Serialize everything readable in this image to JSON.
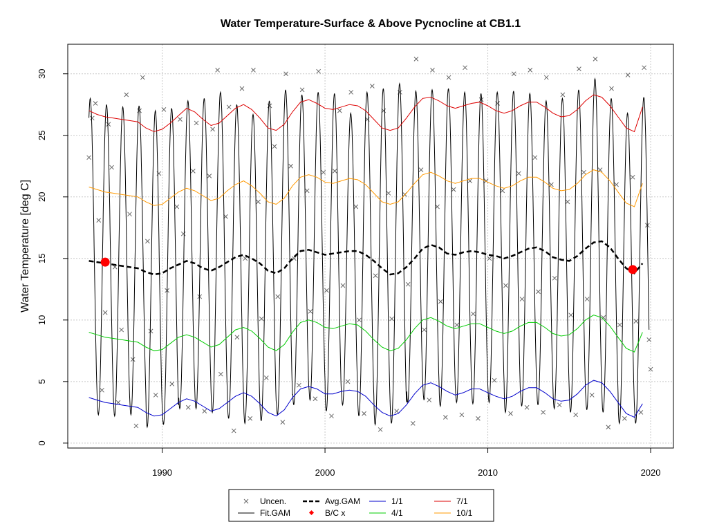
{
  "chart_data": {
    "type": "line",
    "title": "Water Temperature-Surface & Above Pycnocline at CB1.1",
    "xlabel": "",
    "ylabel": "Water Temperature [deg C]",
    "xlim": [
      1984.2,
      2021.4
    ],
    "ylim": [
      -0.4,
      32.4
    ],
    "x_ticks": [
      1990,
      2000,
      2010,
      2020
    ],
    "y_ticks": [
      0,
      5,
      10,
      15,
      20,
      25,
      30
    ],
    "grid": true,
    "legend_position": "bottom",
    "legend": [
      {
        "label": "Uncen.",
        "kind": "x-marker",
        "color": "#666666"
      },
      {
        "label": "Fit.GAM",
        "kind": "line",
        "color": "#000000"
      },
      {
        "label": "Avg.GAM",
        "kind": "dashed-line",
        "color": "#000000"
      },
      {
        "label": "B/C x",
        "kind": "dot",
        "color": "#ff0000"
      },
      {
        "label": "1/1",
        "kind": "line",
        "color": "#0000cc"
      },
      {
        "label": "4/1",
        "kind": "line",
        "color": "#00cc00"
      },
      {
        "label": "7/1",
        "kind": "line",
        "color": "#dd0000"
      },
      {
        "label": "10/1",
        "kind": "line",
        "color": "#ff9900"
      }
    ],
    "bc_points": [
      {
        "x": 1986.5,
        "y": 14.7
      },
      {
        "x": 2018.9,
        "y": 14.1
      }
    ],
    "avg_gam": {
      "name": "Avg.GAM",
      "x": [
        1985.5,
        1986.0,
        1986.5,
        1987.0,
        1987.5,
        1988.0,
        1988.5,
        1989.0,
        1989.5,
        1990.0,
        1990.5,
        1991.0,
        1991.5,
        1992.0,
        1992.5,
        1993.0,
        1993.5,
        1994.0,
        1994.5,
        1995.0,
        1995.5,
        1996.0,
        1996.5,
        1997.0,
        1997.5,
        1998.0,
        1998.5,
        1999.0,
        1999.5,
        2000.0,
        2000.5,
        2001.0,
        2001.5,
        2002.0,
        2002.5,
        2003.0,
        2003.5,
        2004.0,
        2004.5,
        2005.0,
        2005.5,
        2006.0,
        2006.5,
        2007.0,
        2007.5,
        2008.0,
        2008.5,
        2009.0,
        2009.5,
        2010.0,
        2010.5,
        2011.0,
        2011.5,
        2012.0,
        2012.5,
        2013.0,
        2013.5,
        2014.0,
        2014.5,
        2015.0,
        2015.5,
        2016.0,
        2016.5,
        2017.0,
        2017.5,
        2018.0,
        2018.5,
        2019.0,
        2019.5
      ],
      "y": [
        14.8,
        14.7,
        14.6,
        14.5,
        14.4,
        14.3,
        14.2,
        13.9,
        13.7,
        13.8,
        14.2,
        14.5,
        14.8,
        14.6,
        14.2,
        14.0,
        14.3,
        14.7,
        15.1,
        15.3,
        15.0,
        14.6,
        14.0,
        13.8,
        14.2,
        15.0,
        15.6,
        15.7,
        15.5,
        15.3,
        15.4,
        15.5,
        15.6,
        15.6,
        15.3,
        14.8,
        14.2,
        13.7,
        13.8,
        14.3,
        15.0,
        15.8,
        16.1,
        15.9,
        15.4,
        15.3,
        15.5,
        15.6,
        15.5,
        15.3,
        15.2,
        15.0,
        15.2,
        15.5,
        15.8,
        15.9,
        15.6,
        15.1,
        14.9,
        14.8,
        15.2,
        15.8,
        16.3,
        16.4,
        15.9,
        15.0,
        14.2,
        13.8,
        14.6
      ]
    },
    "series": [
      {
        "name": "1/1",
        "color": "#0000cc",
        "y": [
          3.7,
          3.5,
          3.3,
          3.2,
          3.1,
          3.0,
          2.9,
          2.5,
          2.2,
          2.3,
          2.8,
          3.3,
          3.6,
          3.4,
          3.0,
          2.6,
          2.8,
          3.3,
          3.8,
          4.1,
          3.8,
          3.2,
          2.5,
          2.2,
          2.7,
          3.7,
          4.4,
          4.6,
          4.4,
          4.0,
          4.0,
          4.2,
          4.3,
          4.2,
          3.8,
          3.1,
          2.5,
          2.2,
          2.4,
          3.1,
          4.0,
          4.7,
          4.9,
          4.6,
          4.2,
          3.9,
          4.1,
          4.4,
          4.4,
          4.1,
          3.8,
          3.6,
          3.8,
          4.2,
          4.5,
          4.5,
          4.1,
          3.6,
          3.4,
          3.5,
          4.0,
          4.7,
          5.1,
          4.9,
          4.2,
          3.3,
          2.4,
          2.1,
          3.2
        ]
      },
      {
        "name": "4/1",
        "color": "#00cc00",
        "y": [
          9.0,
          8.8,
          8.6,
          8.5,
          8.4,
          8.3,
          8.2,
          7.8,
          7.5,
          7.6,
          8.1,
          8.6,
          8.8,
          8.6,
          8.2,
          7.8,
          8.0,
          8.6,
          9.2,
          9.4,
          9.1,
          8.5,
          7.8,
          7.5,
          8.0,
          9.0,
          9.8,
          10.0,
          9.8,
          9.4,
          9.3,
          9.5,
          9.7,
          9.6,
          9.1,
          8.4,
          7.8,
          7.5,
          7.7,
          8.4,
          9.3,
          10.0,
          10.2,
          9.9,
          9.5,
          9.3,
          9.5,
          9.7,
          9.7,
          9.4,
          9.1,
          8.9,
          9.1,
          9.5,
          9.8,
          9.8,
          9.4,
          8.9,
          8.7,
          8.8,
          9.3,
          10.0,
          10.4,
          10.2,
          9.5,
          8.6,
          7.7,
          7.4,
          9.0
        ]
      },
      {
        "name": "7/1",
        "color": "#dd0000",
        "y": [
          27.0,
          26.7,
          26.5,
          26.4,
          26.3,
          26.2,
          26.1,
          25.6,
          25.3,
          25.5,
          26.0,
          26.6,
          27.2,
          26.9,
          26.3,
          25.8,
          26.0,
          26.6,
          27.2,
          27.5,
          27.1,
          26.4,
          25.6,
          25.4,
          25.9,
          26.9,
          27.7,
          27.9,
          27.6,
          27.2,
          27.1,
          27.3,
          27.5,
          27.4,
          27.0,
          26.3,
          25.6,
          25.4,
          25.6,
          26.4,
          27.3,
          28.0,
          28.1,
          27.8,
          27.4,
          27.2,
          27.4,
          27.6,
          27.7,
          27.4,
          27.0,
          26.8,
          27.0,
          27.4,
          27.7,
          27.7,
          27.3,
          26.8,
          26.5,
          26.6,
          27.1,
          27.8,
          28.3,
          28.1,
          27.4,
          26.5,
          25.6,
          25.3,
          27.3
        ]
      },
      {
        "name": "10/1",
        "color": "#ff9900",
        "y": [
          20.8,
          20.6,
          20.4,
          20.3,
          20.2,
          20.1,
          20.0,
          19.6,
          19.3,
          19.4,
          19.9,
          20.4,
          20.7,
          20.5,
          20.1,
          19.7,
          19.9,
          20.5,
          21.0,
          21.3,
          20.9,
          20.3,
          19.6,
          19.4,
          19.9,
          20.9,
          21.6,
          21.8,
          21.6,
          21.2,
          21.1,
          21.3,
          21.5,
          21.4,
          21.0,
          20.3,
          19.6,
          19.4,
          19.6,
          20.3,
          21.1,
          21.8,
          22.0,
          21.7,
          21.3,
          21.1,
          21.3,
          21.5,
          21.5,
          21.2,
          20.9,
          20.7,
          20.9,
          21.3,
          21.6,
          21.6,
          21.2,
          20.7,
          20.5,
          20.6,
          21.1,
          21.8,
          22.2,
          22.0,
          21.3,
          20.4,
          19.5,
          19.2,
          21.1
        ]
      }
    ],
    "fit_gam": {
      "name": "Fit.GAM",
      "x_start": 1985.5,
      "x_end": 2019.9,
      "peak_phase": 0.58,
      "peaks": [
        28.0,
        27.5,
        27.3,
        27.4,
        27.0,
        27.2,
        27.8,
        28.0,
        28.5,
        27.5,
        26.7,
        27.8,
        28.7,
        28.3,
        28.5,
        28.4,
        26.8,
        28.5,
        28.8,
        29.2,
        28.6,
        28.7,
        28.8,
        28.5,
        28.4,
        28.5,
        28.6,
        28.4,
        27.8,
        28.0,
        28.7,
        29.6,
        28.0,
        26.8,
        28.1
      ],
      "troughs": [
        2.4,
        2.3,
        2.2,
        2.3,
        1.3,
        1.5,
        2.8,
        2.8,
        2.5,
        2.0,
        1.6,
        1.8,
        2.3,
        3.1,
        3.5,
        2.6,
        3.1,
        2.2,
        1.5,
        1.6,
        3.3,
        3.5,
        3.0,
        3.3,
        3.2,
        3.3,
        2.5,
        3.0,
        3.1,
        2.8,
        2.5,
        2.7,
        2.5,
        1.6,
        1.6
      ]
    },
    "uncen_points": [
      [
        1985.5,
        23.2
      ],
      [
        1985.7,
        26.4
      ],
      [
        1985.9,
        27.6
      ],
      [
        1986.1,
        18.1
      ],
      [
        1986.3,
        4.3
      ],
      [
        1986.5,
        10.6
      ],
      [
        1986.7,
        25.9
      ],
      [
        1986.9,
        22.4
      ],
      [
        1987.1,
        14.3
      ],
      [
        1987.3,
        3.3
      ],
      [
        1987.5,
        9.2
      ],
      [
        1987.8,
        28.3
      ],
      [
        1988.0,
        18.6
      ],
      [
        1988.2,
        6.8
      ],
      [
        1988.4,
        1.4
      ],
      [
        1988.6,
        27.0
      ],
      [
        1988.8,
        29.7
      ],
      [
        1989.1,
        16.4
      ],
      [
        1989.3,
        9.1
      ],
      [
        1989.6,
        3.9
      ],
      [
        1989.8,
        21.9
      ],
      [
        1990.1,
        27.1
      ],
      [
        1990.3,
        12.4
      ],
      [
        1990.6,
        4.8
      ],
      [
        1990.9,
        19.2
      ],
      [
        1991.1,
        26.3
      ],
      [
        1991.3,
        17.0
      ],
      [
        1991.6,
        2.9
      ],
      [
        1991.9,
        22.1
      ],
      [
        1992.1,
        26.0
      ],
      [
        1992.3,
        11.9
      ],
      [
        1992.6,
        2.6
      ],
      [
        1992.9,
        21.7
      ],
      [
        1993.1,
        25.5
      ],
      [
        1993.4,
        30.3
      ],
      [
        1993.6,
        5.6
      ],
      [
        1993.9,
        18.4
      ],
      [
        1994.1,
        27.3
      ],
      [
        1994.4,
        1.0
      ],
      [
        1994.6,
        8.6
      ],
      [
        1994.9,
        28.8
      ],
      [
        1995.1,
        15.0
      ],
      [
        1995.4,
        2.0
      ],
      [
        1995.6,
        30.3
      ],
      [
        1995.9,
        19.6
      ],
      [
        1996.1,
        10.1
      ],
      [
        1996.4,
        5.3
      ],
      [
        1996.6,
        27.4
      ],
      [
        1996.9,
        24.1
      ],
      [
        1997.1,
        11.9
      ],
      [
        1997.4,
        1.7
      ],
      [
        1997.6,
        30.0
      ],
      [
        1997.9,
        22.5
      ],
      [
        1998.1,
        15.0
      ],
      [
        1998.4,
        4.7
      ],
      [
        1998.6,
        28.7
      ],
      [
        1998.9,
        20.5
      ],
      [
        1999.1,
        10.7
      ],
      [
        1999.4,
        3.6
      ],
      [
        1999.6,
        30.2
      ],
      [
        1999.9,
        22.0
      ],
      [
        2000.1,
        12.4
      ],
      [
        2000.4,
        2.2
      ],
      [
        2000.6,
        22.1
      ],
      [
        2000.9,
        27.0
      ],
      [
        2001.1,
        12.8
      ],
      [
        2001.4,
        5.0
      ],
      [
        2001.6,
        28.5
      ],
      [
        2001.9,
        19.2
      ],
      [
        2002.1,
        10.0
      ],
      [
        2002.4,
        2.4
      ],
      [
        2002.6,
        26.3
      ],
      [
        2002.9,
        29.0
      ],
      [
        2003.1,
        13.6
      ],
      [
        2003.4,
        1.1
      ],
      [
        2003.6,
        27.0
      ],
      [
        2003.9,
        20.3
      ],
      [
        2004.1,
        10.1
      ],
      [
        2004.4,
        2.6
      ],
      [
        2004.6,
        28.5
      ],
      [
        2004.9,
        20.2
      ],
      [
        2005.1,
        12.9
      ],
      [
        2005.4,
        1.6
      ],
      [
        2005.6,
        31.2
      ],
      [
        2005.9,
        22.2
      ],
      [
        2006.1,
        9.2
      ],
      [
        2006.4,
        3.5
      ],
      [
        2006.6,
        30.3
      ],
      [
        2006.9,
        19.2
      ],
      [
        2007.1,
        11.5
      ],
      [
        2007.4,
        2.1
      ],
      [
        2007.6,
        29.7
      ],
      [
        2007.9,
        20.6
      ],
      [
        2008.1,
        9.6
      ],
      [
        2008.4,
        2.3
      ],
      [
        2008.6,
        30.5
      ],
      [
        2008.9,
        21.3
      ],
      [
        2009.1,
        10.5
      ],
      [
        2009.4,
        2.0
      ],
      [
        2009.6,
        27.9
      ],
      [
        2009.9,
        21.3
      ],
      [
        2010.1,
        15.0
      ],
      [
        2010.4,
        5.1
      ],
      [
        2010.6,
        27.6
      ],
      [
        2010.9,
        20.5
      ],
      [
        2011.1,
        12.8
      ],
      [
        2011.4,
        2.4
      ],
      [
        2011.6,
        30.0
      ],
      [
        2011.9,
        21.9
      ],
      [
        2012.1,
        11.7
      ],
      [
        2012.4,
        2.9
      ],
      [
        2012.6,
        30.3
      ],
      [
        2012.9,
        23.2
      ],
      [
        2013.1,
        12.3
      ],
      [
        2013.4,
        2.5
      ],
      [
        2013.6,
        29.7
      ],
      [
        2013.9,
        21.0
      ],
      [
        2014.1,
        13.4
      ],
      [
        2014.4,
        3.1
      ],
      [
        2014.6,
        28.3
      ],
      [
        2014.9,
        19.6
      ],
      [
        2015.1,
        10.4
      ],
      [
        2015.4,
        2.3
      ],
      [
        2015.6,
        30.4
      ],
      [
        2015.9,
        22.0
      ],
      [
        2016.1,
        11.7
      ],
      [
        2016.4,
        3.9
      ],
      [
        2016.6,
        31.2
      ],
      [
        2016.9,
        22.2
      ],
      [
        2017.1,
        10.2
      ],
      [
        2017.4,
        1.3
      ],
      [
        2017.6,
        28.8
      ],
      [
        2017.9,
        21.0
      ],
      [
        2018.1,
        9.6
      ],
      [
        2018.4,
        2.0
      ],
      [
        2018.6,
        29.9
      ],
      [
        2018.9,
        21.6
      ],
      [
        2019.1,
        9.9
      ],
      [
        2019.4,
        2.5
      ],
      [
        2019.6,
        30.5
      ],
      [
        2019.8,
        17.7
      ],
      [
        2019.9,
        8.4
      ],
      [
        2020.0,
        6.0
      ]
    ]
  }
}
